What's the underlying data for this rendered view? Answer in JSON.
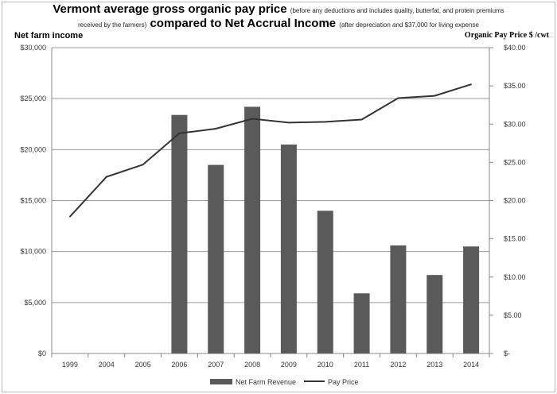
{
  "chart_data": {
    "type": "bar+line",
    "title_main_1": "Vermont average gross organic pay price",
    "title_note_1": "(before any deductions and includes quality, butterfat, and protein premiums",
    "title_note_2": "received by the farmers)",
    "title_main_2": "compared to Net Accrual Income",
    "title_note_3": "(after depreciation and $37,000 for living expense",
    "ylabel": "Net farm income",
    "y2label": "Organic Pay Price $ /cwt",
    "categories": [
      "1999",
      "2004",
      "2005",
      "2006",
      "2007",
      "2008",
      "2009",
      "2010",
      "2011",
      "2012",
      "2013",
      "2014"
    ],
    "ylim": [
      0,
      30000
    ],
    "y2lim": [
      0,
      40
    ],
    "yticks": [
      "$0",
      "$5,000",
      "$10,000",
      "$15,000",
      "$20,000",
      "$25,000",
      "$30,000"
    ],
    "y2ticks": [
      "$-",
      "$5.00",
      "$10.00",
      "$15.00",
      "$20.00",
      "$25.00",
      "$30.00",
      "$35.00",
      "$40.00"
    ],
    "grid": true,
    "legend_position": "bottom",
    "series": [
      {
        "name": "Net Farm Revenue",
        "type": "bar",
        "axis": "left",
        "color": "#5a5a5a",
        "values": [
          null,
          null,
          null,
          23400,
          18500,
          24200,
          20500,
          14000,
          5900,
          10600,
          7700,
          10500
        ]
      },
      {
        "name": "Pay Price",
        "type": "line",
        "axis": "right",
        "color": "#333333",
        "values": [
          17.9,
          23.1,
          24.7,
          28.8,
          29.4,
          30.7,
          30.2,
          30.3,
          30.6,
          33.4,
          33.7,
          35.2
        ]
      }
    ]
  }
}
